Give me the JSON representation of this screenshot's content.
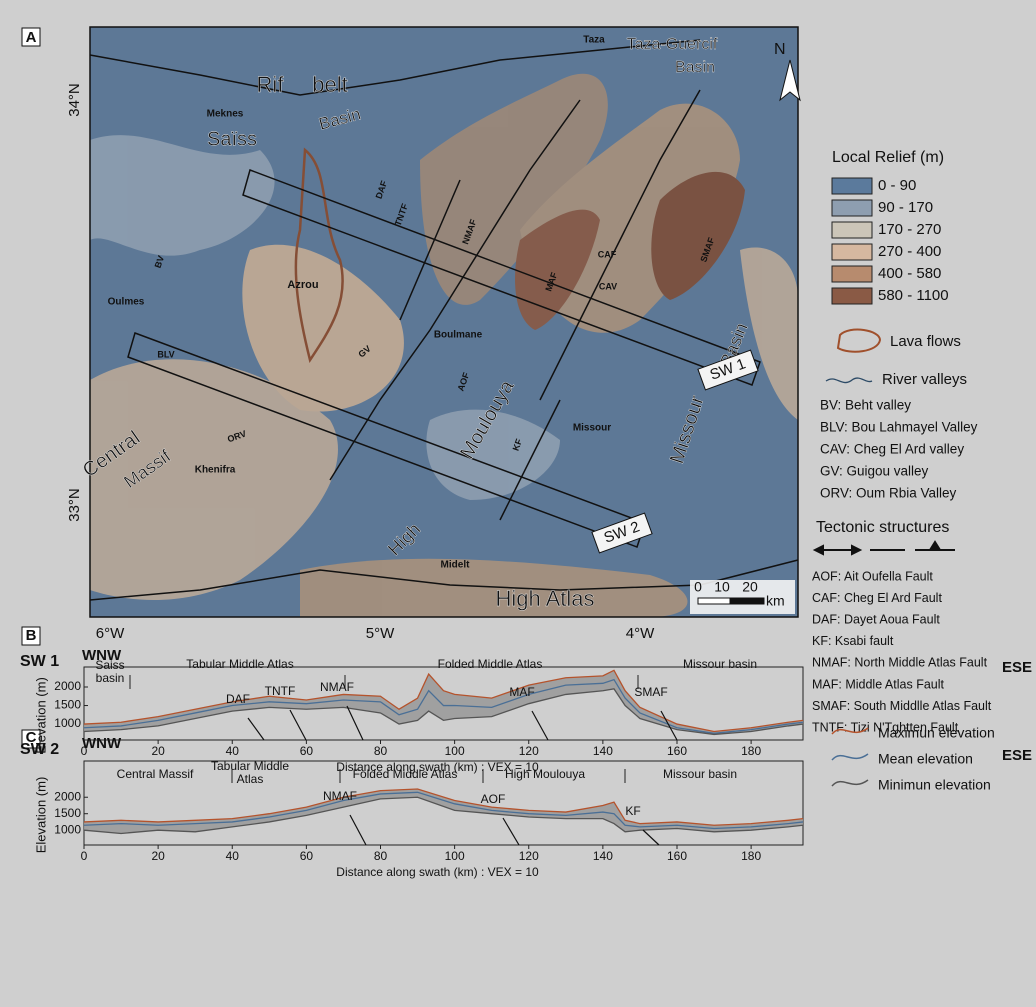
{
  "map": {
    "panel_label": "A",
    "lat_labels": [
      "34°N",
      "33°N"
    ],
    "lon_labels": [
      "6°W",
      "5°W",
      "4°W"
    ],
    "labels": [
      "Rif",
      "belt",
      "Taza",
      "Taza-Guercif",
      "Basin",
      "Meknes",
      "Saïss",
      "Basin",
      "Oulmes",
      "Azrou",
      "Boulmane",
      "Missour",
      "Khenifra",
      "Midelt",
      "Central",
      "Massif",
      "Moulouya",
      "High",
      "High Atlas",
      "Missour",
      "Basin",
      "DAF",
      "TNTF",
      "NMAF",
      "MAF",
      "CAF",
      "CAV",
      "SMAF",
      "BV",
      "BLV",
      "GV",
      "ORV",
      "AOF",
      "KF"
    ],
    "swaths": [
      "SW 1",
      "SW 2"
    ],
    "north": "N",
    "scale_ticks": [
      "0",
      "10",
      "20"
    ],
    "scale_unit": "km"
  },
  "legend": {
    "relief_title": "Local Relief (m)",
    "relief_classes": [
      {
        "label": "0 - 90",
        "color": "#5b7a9c"
      },
      {
        "label": "90 - 170",
        "color": "#8e9eb0"
      },
      {
        "label": "170 - 270",
        "color": "#cbc5b8"
      },
      {
        "label": "270 - 400",
        "color": "#d6b8a0"
      },
      {
        "label": "400 - 580",
        "color": "#b78b6e"
      },
      {
        "label": "580 - 1100",
        "color": "#8a5a45"
      }
    ],
    "lava": "Lava flows",
    "rivers": "River valleys",
    "valleys": [
      "BV: Beht valley",
      "BLV: Bou Lahmayel Valley",
      "CAV: Cheg El Ard valley",
      "GV: Guigou valley",
      "ORV: Oum Rbia Valley"
    ],
    "tectonic_title": "Tectonic structures",
    "faults": [
      "AOF: Ait Oufella Fault",
      "CAF: Cheg El Ard Fault",
      "DAF: Dayet Aoua Fault",
      "KF: Ksabi fault",
      "NMAF: North Middle Atlas Fault",
      "MAF: Middle Atlas Fault",
      "SMAF: South Middlle Atlas Fault",
      "TNTF: Tizi N'Tghtten Fault"
    ]
  },
  "chart_data": [
    {
      "type": "line",
      "panel_label": "B",
      "title": "SW 1",
      "direction_left": "WNW",
      "direction_right": "ESE",
      "ylabel": "Elevation (m)",
      "xlabel": "Distance along swath (km) : VEX = 10",
      "regions": [
        "Saiss basin",
        "Tabular Middle Atlas",
        "Folded Middle Atlas",
        "Missour basin"
      ],
      "faults": [
        "DAF",
        "TNTF",
        "NMAF",
        "MAF",
        "SMAF"
      ],
      "x": [
        0,
        10,
        20,
        30,
        40,
        50,
        60,
        70,
        80,
        85,
        90,
        93,
        97,
        100,
        110,
        120,
        130,
        140,
        143,
        146,
        150,
        160,
        170,
        180,
        190,
        194
      ],
      "series": [
        {
          "name": "Maximun elevation",
          "color": "#b5532c",
          "values": [
            1000,
            1050,
            1200,
            1400,
            1600,
            1750,
            1650,
            1800,
            1750,
            1400,
            1700,
            2350,
            1900,
            1800,
            1700,
            2050,
            2250,
            2300,
            2450,
            1900,
            1450,
            1000,
            800,
            900,
            1050,
            1100
          ]
        },
        {
          "name": "Mean elevation",
          "color": "#4a6f96",
          "values": [
            900,
            950,
            1100,
            1300,
            1500,
            1600,
            1550,
            1650,
            1600,
            1250,
            1400,
            1900,
            1500,
            1500,
            1450,
            1800,
            2050,
            2100,
            2200,
            1700,
            1300,
            900,
            750,
            850,
            1000,
            1050
          ]
        },
        {
          "name": "Minimun elevation",
          "color": "#555555",
          "values": [
            800,
            850,
            950,
            1150,
            1350,
            1450,
            1400,
            1450,
            1300,
            1000,
            1100,
            1350,
            1100,
            1150,
            1200,
            1550,
            1800,
            1900,
            1950,
            1500,
            1150,
            850,
            720,
            800,
            950,
            1000
          ]
        }
      ],
      "band_color": "#9a9a9a",
      "xlim": [
        0,
        194
      ],
      "xticks": [
        0,
        20,
        40,
        60,
        80,
        100,
        120,
        140,
        160,
        180
      ],
      "ylim": [
        570,
        2540
      ],
      "yticks": [
        1000,
        1500,
        2000
      ]
    },
    {
      "type": "line",
      "panel_label": "C",
      "title": "SW 2",
      "direction_left": "WNW",
      "direction_right": "ESE",
      "ylabel": "Elevation (m)",
      "xlabel": "Distance along swath (km) : VEX = 10",
      "regions": [
        "Central Massif",
        "Tabular Middle Atlas",
        "Folded Middle Atlas",
        "High Moulouya",
        "Missour basin"
      ],
      "faults": [
        "NMAF",
        "AOF",
        "KF"
      ],
      "x": [
        0,
        10,
        20,
        30,
        40,
        50,
        60,
        70,
        80,
        90,
        100,
        110,
        120,
        130,
        140,
        143,
        146,
        150,
        160,
        170,
        180,
        190,
        194
      ],
      "series": [
        {
          "color": "#b5532c",
          "values": [
            1250,
            1300,
            1250,
            1300,
            1350,
            1500,
            1700,
            2000,
            2200,
            2250,
            1900,
            1700,
            1600,
            1550,
            1750,
            1850,
            1300,
            1200,
            1250,
            1150,
            1200,
            1300,
            1350
          ]
        },
        {
          "color": "#4a6f96",
          "values": [
            1150,
            1200,
            1150,
            1200,
            1250,
            1400,
            1600,
            1900,
            2100,
            2150,
            1800,
            1600,
            1500,
            1450,
            1550,
            1500,
            1150,
            1100,
            1150,
            1050,
            1100,
            1200,
            1250
          ]
        },
        {
          "color": "#555555",
          "values": [
            1000,
            900,
            1000,
            950,
            1100,
            1250,
            1450,
            1700,
            1950,
            2000,
            1600,
            1500,
            1400,
            1350,
            1350,
            1200,
            950,
            1000,
            1050,
            950,
            1000,
            1100,
            1150
          ]
        }
      ],
      "band_color": "#9a9a9a",
      "xlim": [
        0,
        194
      ],
      "xticks": [
        0,
        20,
        40,
        60,
        80,
        100,
        120,
        140,
        160,
        180
      ],
      "ylim": [
        550,
        3100
      ],
      "yticks": [
        1000,
        1500,
        2000
      ]
    }
  ]
}
